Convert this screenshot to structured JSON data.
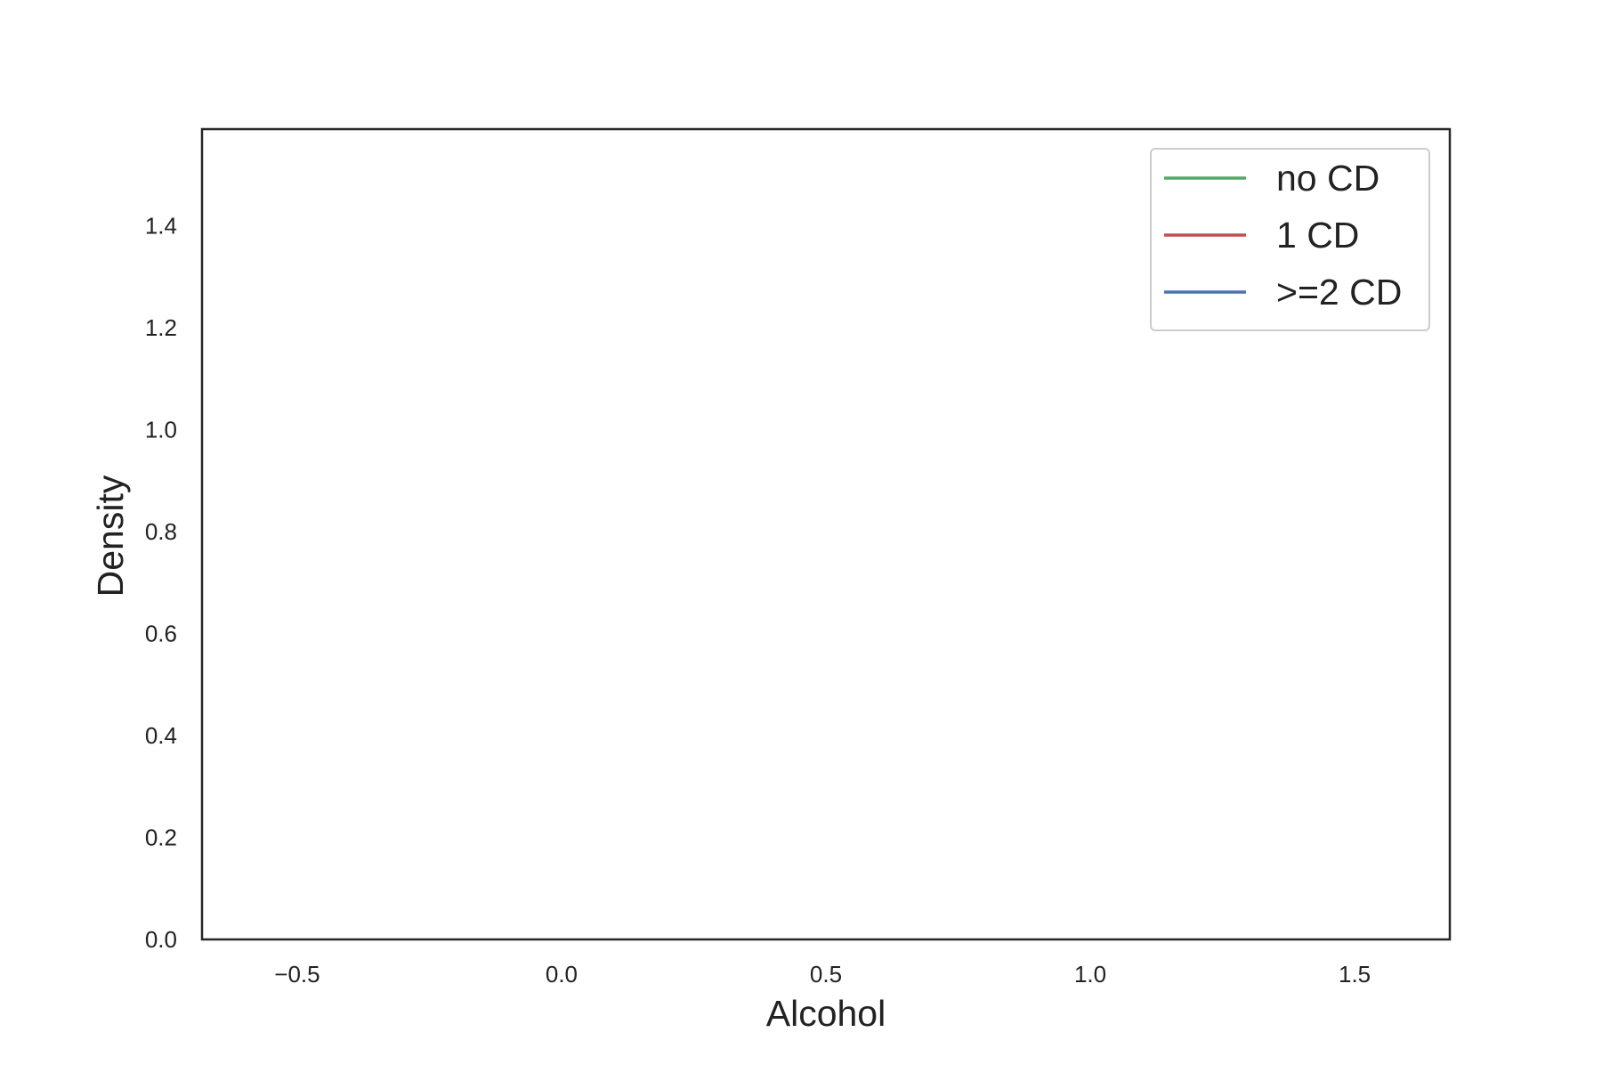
{
  "chart_data": {
    "type": "line",
    "title": "",
    "xlabel": "Alcohol",
    "ylabel": "Density",
    "xlim": [
      -0.68,
      1.68
    ],
    "ylim": [
      0.0,
      1.59
    ],
    "x_ticks": [
      -0.5,
      0.0,
      0.5,
      1.0,
      1.5
    ],
    "x_tick_labels": [
      "−0.5",
      "0.0",
      "0.5",
      "1.0",
      "1.5"
    ],
    "y_ticks": [
      0.0,
      0.2,
      0.4,
      0.6,
      0.8,
      1.0,
      1.2,
      1.4
    ],
    "y_tick_labels": [
      "0.0",
      "0.2",
      "0.4",
      "0.6",
      "0.8",
      "1.0",
      "1.2",
      "1.4"
    ],
    "grid": false,
    "legend_position": "top-right",
    "series": [
      {
        "name": "no CD",
        "color": "#55a868",
        "x": [],
        "y": []
      },
      {
        "name": "1 CD",
        "color": "#c44e52",
        "x": [],
        "y": []
      },
      {
        "name": ">=2 CD",
        "color": "#4c72b0",
        "x": [],
        "y": []
      }
    ]
  }
}
